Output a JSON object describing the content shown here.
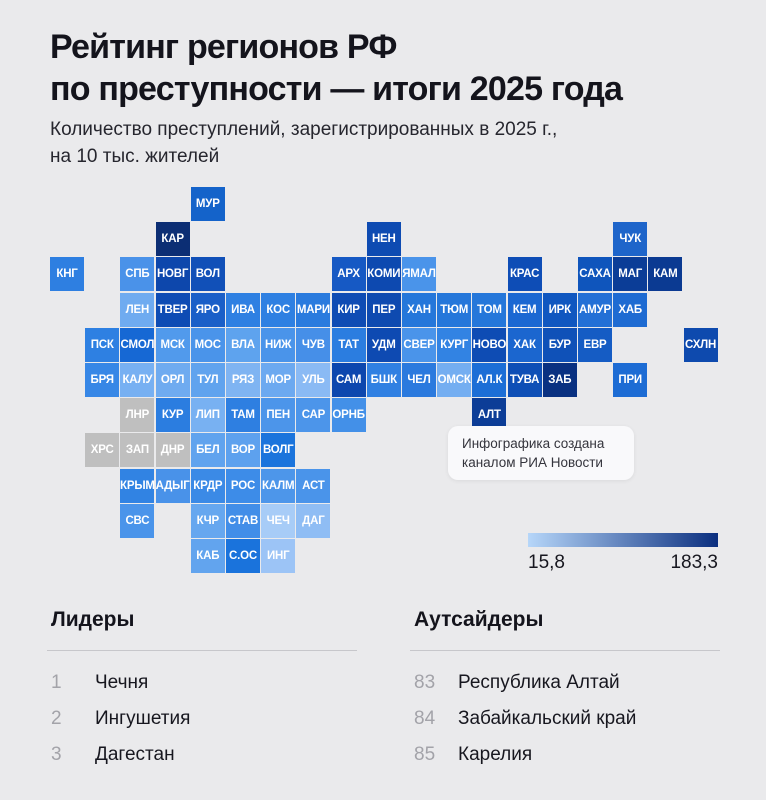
{
  "header": {
    "title_line1": "Рейтинг регионов РФ",
    "title_line2": "по преступности — итоги 2025 года",
    "subtitle_line1": "Количество преступлений, зарегистрированных в 2025 г.,",
    "subtitle_line2": "на 10 тыс. жителей"
  },
  "map": {
    "no_data_color": "#bfbfbf",
    "tiles": [
      {
        "label": "МУР",
        "row": 1,
        "col": 5,
        "color": "#1463ca"
      },
      {
        "label": "КАР",
        "row": 2,
        "col": 4,
        "color": "#0c2e74"
      },
      {
        "label": "НЕН",
        "row": 2,
        "col": 10,
        "color": "#0e4bb2"
      },
      {
        "label": "ЧУК",
        "row": 2,
        "col": 17,
        "color": "#1e65ca"
      },
      {
        "label": "КНГ",
        "row": 3,
        "col": 1,
        "color": "#2e7fe1"
      },
      {
        "label": "СПБ",
        "row": 3,
        "col": 3,
        "color": "#4a92e9"
      },
      {
        "label": "НОВГ",
        "row": 3,
        "col": 4,
        "color": "#0d47ac"
      },
      {
        "label": "ВОЛ",
        "row": 3,
        "col": 5,
        "color": "#1150b8"
      },
      {
        "label": "АРХ",
        "row": 3,
        "col": 9,
        "color": "#1659c4"
      },
      {
        "label": "КОМИ",
        "row": 3,
        "col": 10,
        "color": "#0d49b0"
      },
      {
        "label": "ЯМАЛ",
        "row": 3,
        "col": 11,
        "color": "#4a94ea"
      },
      {
        "label": "КРАС",
        "row": 3,
        "col": 14,
        "color": "#0e4db6"
      },
      {
        "label": "САХА",
        "row": 3,
        "col": 16,
        "color": "#0f55bc"
      },
      {
        "label": "МАГ",
        "row": 3,
        "col": 17,
        "color": "#0b3d97"
      },
      {
        "label": "КАМ",
        "row": 3,
        "col": 18,
        "color": "#0b3a92"
      },
      {
        "label": "ЛЕН",
        "row": 4,
        "col": 3,
        "color": "#6fabf0"
      },
      {
        "label": "ТВЕР",
        "row": 4,
        "col": 4,
        "color": "#0e4cb4"
      },
      {
        "label": "ЯРО",
        "row": 4,
        "col": 5,
        "color": "#1a5fc8"
      },
      {
        "label": "ИВА",
        "row": 4,
        "col": 6,
        "color": "#2e80e2"
      },
      {
        "label": "КОС",
        "row": 4,
        "col": 7,
        "color": "#2e80e2"
      },
      {
        "label": "МАРИ",
        "row": 4,
        "col": 8,
        "color": "#2a7bde"
      },
      {
        "label": "КИР",
        "row": 4,
        "col": 9,
        "color": "#0f4cb4"
      },
      {
        "label": "ПЕР",
        "row": 4,
        "col": 10,
        "color": "#0e4ab0"
      },
      {
        "label": "ХАН",
        "row": 4,
        "col": 11,
        "color": "#2577da"
      },
      {
        "label": "ТЮМ",
        "row": 4,
        "col": 12,
        "color": "#2577da"
      },
      {
        "label": "ТОМ",
        "row": 4,
        "col": 13,
        "color": "#2577da"
      },
      {
        "label": "КЕМ",
        "row": 4,
        "col": 14,
        "color": "#1b68d2"
      },
      {
        "label": "ИРК",
        "row": 4,
        "col": 15,
        "color": "#1057c0"
      },
      {
        "label": "АМУР",
        "row": 4,
        "col": 16,
        "color": "#2370d6"
      },
      {
        "label": "ХАБ",
        "row": 4,
        "col": 17,
        "color": "#1e6bd2"
      },
      {
        "label": "ПСК",
        "row": 5,
        "col": 2,
        "color": "#2e80e2"
      },
      {
        "label": "СМОЛ",
        "row": 5,
        "col": 3,
        "color": "#1668d4"
      },
      {
        "label": "МСК",
        "row": 5,
        "col": 4,
        "color": "#519aec"
      },
      {
        "label": "МОС",
        "row": 5,
        "col": 5,
        "color": "#4a94ea"
      },
      {
        "label": "ВЛА",
        "row": 5,
        "col": 6,
        "color": "#5ea3ee"
      },
      {
        "label": "НИЖ",
        "row": 5,
        "col": 7,
        "color": "#4a94ea"
      },
      {
        "label": "ЧУВ",
        "row": 5,
        "col": 8,
        "color": "#468fe8"
      },
      {
        "label": "ТАТ",
        "row": 5,
        "col": 9,
        "color": "#2b7de0"
      },
      {
        "label": "УДМ",
        "row": 5,
        "col": 10,
        "color": "#0e4ab2"
      },
      {
        "label": "СВЕР",
        "row": 5,
        "col": 11,
        "color": "#4a94ea"
      },
      {
        "label": "КУРГ",
        "row": 5,
        "col": 12,
        "color": "#3283e3"
      },
      {
        "label": "НОВО",
        "row": 5,
        "col": 13,
        "color": "#0e4cb4"
      },
      {
        "label": "ХАК",
        "row": 5,
        "col": 14,
        "color": "#1b66cf"
      },
      {
        "label": "БУР",
        "row": 5,
        "col": 15,
        "color": "#0f51b8"
      },
      {
        "label": "ЕВР",
        "row": 5,
        "col": 16,
        "color": "#155cc4"
      },
      {
        "label": "СХЛН",
        "row": 5,
        "col": 19,
        "color": "#0e4aae"
      },
      {
        "label": "БРЯ",
        "row": 6,
        "col": 2,
        "color": "#3787e6"
      },
      {
        "label": "КАЛУ",
        "row": 6,
        "col": 3,
        "color": "#77b0f2"
      },
      {
        "label": "ОРЛ",
        "row": 6,
        "col": 4,
        "color": "#6fabf0"
      },
      {
        "label": "ТУЛ",
        "row": 6,
        "col": 5,
        "color": "#60a3ee"
      },
      {
        "label": "РЯЗ",
        "row": 6,
        "col": 6,
        "color": "#7fb4f2"
      },
      {
        "label": "МОР",
        "row": 6,
        "col": 7,
        "color": "#6ca9f0"
      },
      {
        "label": "УЛЬ",
        "row": 6,
        "col": 8,
        "color": "#8abaf4"
      },
      {
        "label": "САМ",
        "row": 6,
        "col": 9,
        "color": "#0d47ae"
      },
      {
        "label": "БШК",
        "row": 6,
        "col": 10,
        "color": "#3080e2"
      },
      {
        "label": "ЧЕЛ",
        "row": 6,
        "col": 11,
        "color": "#2b7ade"
      },
      {
        "label": "ОМСК",
        "row": 6,
        "col": 12,
        "color": "#74aef1"
      },
      {
        "label": "АЛ.К",
        "row": 6,
        "col": 13,
        "color": "#1c6ed6"
      },
      {
        "label": "ТУВА",
        "row": 6,
        "col": 14,
        "color": "#0e4fb6"
      },
      {
        "label": "ЗАБ",
        "row": 6,
        "col": 15,
        "color": "#0a3181"
      },
      {
        "label": "ПРИ",
        "row": 6,
        "col": 17,
        "color": "#1d6cd4"
      },
      {
        "label": "ЛНР",
        "row": 7,
        "col": 3,
        "color": "#bfbfbf"
      },
      {
        "label": "КУР",
        "row": 7,
        "col": 4,
        "color": "#2b7de0"
      },
      {
        "label": "ЛИП",
        "row": 7,
        "col": 5,
        "color": "#78b1f2"
      },
      {
        "label": "ТАМ",
        "row": 7,
        "col": 6,
        "color": "#2e7fe1"
      },
      {
        "label": "ПЕН",
        "row": 7,
        "col": 7,
        "color": "#4c95ea"
      },
      {
        "label": "САР",
        "row": 7,
        "col": 8,
        "color": "#4c95ea"
      },
      {
        "label": "ОРНБ",
        "row": 7,
        "col": 9,
        "color": "#4390e8"
      },
      {
        "label": "АЛТ",
        "row": 7,
        "col": 13,
        "color": "#0c3d97"
      },
      {
        "label": "ХРС",
        "row": 8,
        "col": 2,
        "color": "#bfbfbf"
      },
      {
        "label": "ЗАП",
        "row": 8,
        "col": 3,
        "color": "#bfbfbf"
      },
      {
        "label": "ДНР",
        "row": 8,
        "col": 4,
        "color": "#bfbfbf"
      },
      {
        "label": "БЕЛ",
        "row": 8,
        "col": 5,
        "color": "#60a3ee"
      },
      {
        "label": "ВОР",
        "row": 8,
        "col": 6,
        "color": "#5da1ee"
      },
      {
        "label": "ВОЛГ",
        "row": 8,
        "col": 7,
        "color": "#1b74dc"
      },
      {
        "label": "КРЫМ",
        "row": 9,
        "col": 3,
        "color": "#3183e3"
      },
      {
        "label": "АДЫГ",
        "row": 9,
        "col": 4,
        "color": "#4992e9"
      },
      {
        "label": "КРДР",
        "row": 9,
        "col": 5,
        "color": "#3b8ae6"
      },
      {
        "label": "РОС",
        "row": 9,
        "col": 6,
        "color": "#3d8ce8"
      },
      {
        "label": "КАЛМ",
        "row": 9,
        "col": 7,
        "color": "#4d96ea"
      },
      {
        "label": "АСТ",
        "row": 9,
        "col": 8,
        "color": "#4a94ea"
      },
      {
        "label": "СВС",
        "row": 10,
        "col": 3,
        "color": "#4a94ea"
      },
      {
        "label": "КЧР",
        "row": 10,
        "col": 5,
        "color": "#66a7ef"
      },
      {
        "label": "СТАВ",
        "row": 10,
        "col": 6,
        "color": "#428ee8"
      },
      {
        "label": "ЧЕЧ",
        "row": 10,
        "col": 7,
        "color": "#a7ccf7"
      },
      {
        "label": "ДАГ",
        "row": 10,
        "col": 8,
        "color": "#8fbdf4"
      },
      {
        "label": "КАБ",
        "row": 11,
        "col": 5,
        "color": "#62a4ee"
      },
      {
        "label": "С.ОС",
        "row": 11,
        "col": 6,
        "color": "#1a73dc"
      },
      {
        "label": "ИНГ",
        "row": 11,
        "col": 7,
        "color": "#9cc4f6"
      }
    ]
  },
  "credit": {
    "line1": "Инфографика создана",
    "line2": "каналом РИА Новости"
  },
  "legend": {
    "min_label": "15,8",
    "max_label": "183,3",
    "gradient_start": "#b6d6f9",
    "gradient_end": "#0b2f7f"
  },
  "leaders": {
    "title": "Лидеры",
    "items": [
      {
        "rank": "1",
        "name": "Чечня"
      },
      {
        "rank": "2",
        "name": "Ингушетия"
      },
      {
        "rank": "3",
        "name": "Дагестан"
      }
    ]
  },
  "outsiders": {
    "title": "Аутсайдеры",
    "items": [
      {
        "rank": "83",
        "name": "Республика Алтай"
      },
      {
        "rank": "84",
        "name": "Забайкальский край"
      },
      {
        "rank": "85",
        "name": "Карелия"
      }
    ]
  }
}
